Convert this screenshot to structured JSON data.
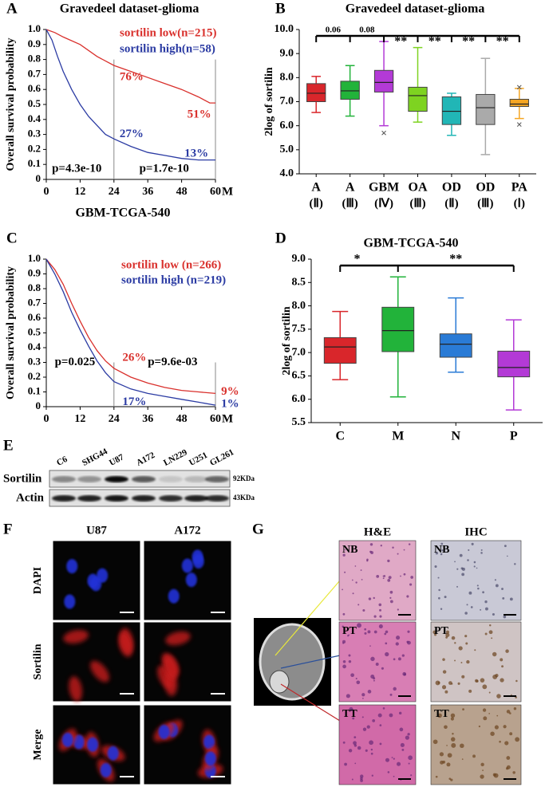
{
  "chart_data": [
    {
      "panel": "A",
      "type": "km",
      "title": "Gravedeel dataset-glioma",
      "ylabel": "Overall  survival probability",
      "xlabel": "GBM-TCGA-540",
      "x_unit": "M",
      "xlim": [
        0,
        60
      ],
      "ylim": [
        0,
        1
      ],
      "xticks": [
        0,
        12,
        24,
        36,
        48,
        60
      ],
      "yticks": [
        0,
        0.1,
        0.2,
        0.3,
        0.4,
        0.5,
        0.6,
        0.7,
        0.8,
        0.9,
        {
          "value": 1,
          "label": "1.0"
        }
      ],
      "series": [
        {
          "name": "sortilin low(n=215)",
          "color": "#d9302c",
          "x": [
            0,
            3,
            6,
            12,
            18,
            24,
            30,
            36,
            42,
            48,
            54,
            58,
            60
          ],
          "values": [
            1,
            0.98,
            0.95,
            0.9,
            0.82,
            0.76,
            0.72,
            0.68,
            0.64,
            0.6,
            0.55,
            0.51,
            0.51
          ]
        },
        {
          "name": "sortilin high(n=58)",
          "color": "#2b3ba3",
          "x": [
            0,
            2,
            4,
            6,
            9,
            12,
            15,
            18,
            21,
            24,
            30,
            36,
            42,
            48,
            54,
            60
          ],
          "values": [
            1,
            0.93,
            0.82,
            0.72,
            0.6,
            0.5,
            0.42,
            0.36,
            0.3,
            0.27,
            0.22,
            0.18,
            0.16,
            0.14,
            0.13,
            0.13
          ]
        }
      ],
      "annotations": [
        {
          "text": "76%",
          "color": "#d9302c"
        },
        {
          "text": "51%",
          "color": "#d9302c"
        },
        {
          "text": "27%",
          "color": "#2b3ba3"
        },
        {
          "text": "13%",
          "color": "#2b3ba3"
        },
        {
          "text": "p=4.3e-10",
          "color": "#000000"
        },
        {
          "text": "p=1.7e-10",
          "color": "#000000"
        }
      ]
    },
    {
      "panel": "B",
      "type": "box",
      "title": "Gravedeel dataset-glioma",
      "ylabel": "2log of sortilin",
      "ylim": [
        4,
        10
      ],
      "yticks": [
        {
          "value": 4,
          "label": "4.0"
        },
        {
          "value": 5,
          "label": "5.0"
        },
        {
          "value": 6,
          "label": "6.0"
        },
        {
          "value": 7,
          "label": "7.0"
        },
        {
          "value": 8,
          "label": "8.0"
        },
        {
          "value": 9,
          "label": "9.0"
        },
        {
          "value": 10,
          "label": "10.0"
        }
      ],
      "categories": [
        "A",
        "A",
        "GBM",
        "OA",
        "OD",
        "OD",
        "PA"
      ],
      "grades": [
        "(Ⅱ)",
        "(Ⅲ)",
        "(Ⅳ)",
        "(Ⅲ)",
        "(Ⅱ)",
        "(Ⅲ)",
        "(Ⅰ)"
      ],
      "values": [
        [
          6.55,
          7.0,
          7.35,
          7.75,
          8.05
        ],
        [
          6.4,
          7.1,
          7.45,
          7.85,
          8.5
        ],
        [
          6.0,
          7.4,
          7.8,
          8.3,
          9.5
        ],
        [
          6.15,
          6.6,
          7.25,
          7.6,
          9.25
        ],
        [
          5.6,
          6.05,
          6.6,
          7.2,
          7.35
        ],
        [
          4.8,
          6.05,
          6.75,
          7.3,
          8.8
        ],
        [
          6.3,
          6.8,
          6.9,
          7.1,
          7.55
        ]
      ],
      "colors": [
        "#d9262b",
        "#22b33a",
        "#b33ad6",
        "#7ed321",
        "#21b6b6",
        "#aaaaaa",
        "#f5a623"
      ],
      "outliers": [
        {
          "category": 2,
          "value": 5.7
        },
        {
          "category": 6,
          "value": 7.6
        },
        {
          "category": 6,
          "value": 6.05
        }
      ],
      "significance": [
        "0.06",
        "0.08",
        "**",
        "**",
        "**",
        "**"
      ]
    },
    {
      "panel": "C",
      "type": "km",
      "ylabel": "Overall  survival probability",
      "x_unit": "M",
      "xlim": [
        0,
        60
      ],
      "ylim": [
        0,
        1
      ],
      "xticks": [
        0,
        12,
        24,
        36,
        48,
        60
      ],
      "yticks": [
        0,
        0.1,
        0.2,
        0.3,
        0.4,
        0.5,
        0.6,
        0.7,
        0.8,
        0.9,
        {
          "value": 1,
          "label": "1.0"
        }
      ],
      "series": [
        {
          "name": "sortilin low (n=266)",
          "color": "#d9302c",
          "x": [
            0,
            3,
            6,
            9,
            12,
            15,
            18,
            21,
            24,
            30,
            36,
            42,
            48,
            54,
            60
          ],
          "values": [
            1,
            0.93,
            0.83,
            0.7,
            0.58,
            0.47,
            0.38,
            0.31,
            0.26,
            0.2,
            0.16,
            0.13,
            0.11,
            0.1,
            0.09
          ]
        },
        {
          "name": "sortilin high (n=219)",
          "color": "#2b3ba3",
          "x": [
            0,
            3,
            6,
            9,
            12,
            15,
            18,
            21,
            24,
            30,
            36,
            42,
            48,
            54,
            60
          ],
          "values": [
            1,
            0.9,
            0.78,
            0.64,
            0.52,
            0.41,
            0.31,
            0.23,
            0.17,
            0.12,
            0.09,
            0.07,
            0.05,
            0.03,
            0.01
          ]
        }
      ],
      "annotations": [
        {
          "text": "26%",
          "color": "#d9302c"
        },
        {
          "text": "9%",
          "color": "#d9302c"
        },
        {
          "text": "17%",
          "color": "#2b3ba3"
        },
        {
          "text": "1%",
          "color": "#2b3ba3"
        },
        {
          "text": "p=0.025",
          "color": "#000000"
        },
        {
          "text": "p=9.6e-03",
          "color": "#000000"
        }
      ]
    },
    {
      "panel": "D",
      "type": "box",
      "title": "GBM-TCGA-540",
      "ylabel": "2log of sortilin",
      "ylim": [
        5.5,
        9
      ],
      "yticks": [
        5.5,
        {
          "value": 6,
          "label": "6.0"
        },
        6.5,
        {
          "value": 7,
          "label": "7.0"
        },
        7.5,
        {
          "value": 8,
          "label": "8.0"
        },
        8.5,
        {
          "value": 9,
          "label": "9.0"
        }
      ],
      "categories": [
        "C",
        "M",
        "N",
        "P"
      ],
      "values": [
        [
          6.42,
          6.77,
          7.12,
          7.32,
          7.88
        ],
        [
          6.05,
          7.02,
          7.47,
          7.97,
          8.62
        ],
        [
          6.58,
          6.9,
          7.18,
          7.4,
          8.17
        ],
        [
          5.77,
          6.48,
          6.68,
          7.03,
          7.7
        ]
      ],
      "colors": [
        "#d9262b",
        "#22b33a",
        "#2a7bd6",
        "#b33ad6"
      ],
      "significance": [
        "*",
        "**"
      ]
    }
  ],
  "blot": {
    "panel": "E",
    "lanes": [
      "C6",
      "SHG44",
      "U87",
      "A172",
      "LN229",
      "U251",
      "GL261"
    ],
    "rows": [
      {
        "label": "Sortilin",
        "size": "92KDa"
      },
      {
        "label": "Actin",
        "size": "43KDa"
      }
    ]
  },
  "immunofluorescence": {
    "panel": "F",
    "columns": [
      "U87",
      "A172"
    ],
    "rows": [
      "DAPI",
      "Sortilin",
      "Merge"
    ]
  },
  "histology": {
    "panel": "G",
    "columns": [
      "H&E",
      "IHC"
    ],
    "rows": [
      "NB",
      "PT",
      "TT"
    ]
  }
}
